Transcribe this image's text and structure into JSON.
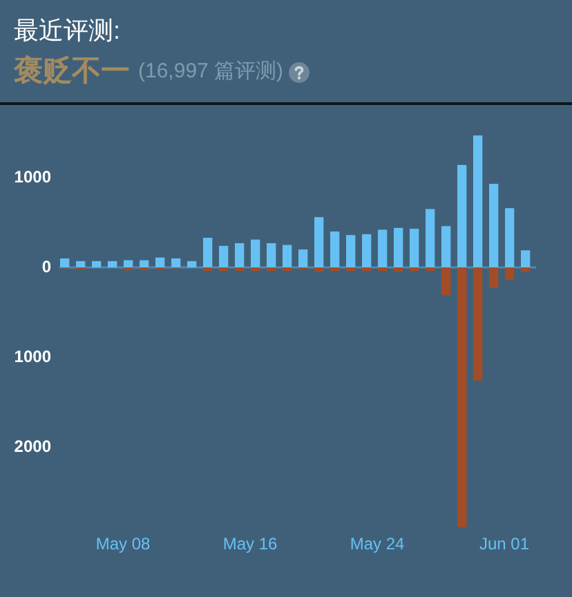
{
  "chart_data": {
    "type": "bar",
    "title": "最近评测:",
    "subtitle": "褒贬不一",
    "annotations": [
      "(16,997 篇评测)"
    ],
    "x": [
      "--05-04T08:00",
      "--05-05T08:00",
      "--05-06T08:00",
      "--05-07T08:00",
      "--05-08T08:00",
      "--05-09T08:00",
      "--05-10T08:00",
      "--05-11T08:00",
      "--05-12T08:00",
      "--05-13T08:00",
      "--05-14T08:00",
      "--05-15T08:00",
      "--05-16T08:00",
      "--05-17T08:00",
      "--05-18T08:00",
      "--05-19T08:00",
      "--05-20T08:00",
      "--05-21T08:00",
      "--05-22T08:00",
      "--05-23T08:00",
      "--05-24T08:00",
      "--05-25T08:00",
      "--05-26T08:00",
      "--05-27T08:00",
      "--05-28T08:00",
      "--05-29T08:00",
      "--05-30T08:00",
      "--05-31T08:00",
      "--06-01T08:00",
      "--06-02T08:00"
    ],
    "series": [
      {
        "color": "#66c0f4",
        "values": [
          100,
          70,
          70,
          70,
          80,
          80,
          110,
          100,
          70,
          330,
          240,
          270,
          310,
          270,
          250,
          200,
          560,
          400,
          360,
          370,
          420,
          440,
          430,
          650,
          460,
          1140,
          1470,
          930,
          660,
          190
        ]
      },
      {
        "color": "#a34c25",
        "values": [
          -10,
          -20,
          0,
          0,
          -30,
          -30,
          -20,
          -10,
          0,
          -40,
          -40,
          -40,
          -40,
          -40,
          -40,
          -20,
          -50,
          -40,
          -40,
          -40,
          -40,
          -50,
          -40,
          -40,
          -310,
          -2890,
          -1260,
          -230,
          -140,
          -50
        ]
      }
    ],
    "stacked": true,
    "xlim": [
      "--05-04",
      "--06-03"
    ],
    "xticks": [
      {
        "value": "--05-08",
        "label": "May 08"
      },
      {
        "value": "--05-16",
        "label": "May 16"
      },
      {
        "value": "--05-24",
        "label": "May 24"
      },
      {
        "value": "--06-01",
        "label": "Jun 01"
      }
    ],
    "ylim": [
      -2900,
      1500
    ],
    "yticks": [
      {
        "value": -2000,
        "label": "2000"
      },
      {
        "value": -1000,
        "label": "1000"
      },
      0,
      1000
    ],
    "ref_lines": [
      {
        "axis": "y",
        "value": 0,
        "color": "#5585aa"
      }
    ]
  }
}
